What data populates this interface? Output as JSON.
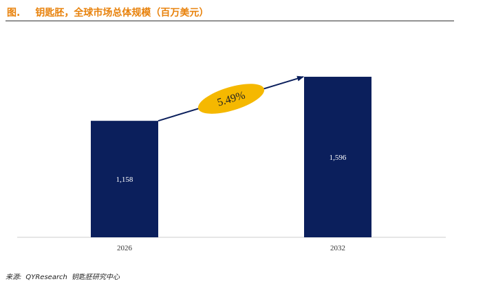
{
  "figure": {
    "label": "图.",
    "title": "钥匙胚，全球市场总体规模（百万美元）"
  },
  "source": {
    "prefix": "来源:",
    "org": "QYResearch",
    "suffix": "钥匙胚研究中心"
  },
  "colors": {
    "title": "#E8820C",
    "bar": "#0B1F5C",
    "arrow": "#0B1F5C",
    "badge": "#F5B800",
    "bar_label": "#ffffff",
    "axis": "#cccccc"
  },
  "chart_data": {
    "type": "bar",
    "title": "钥匙胚，全球市场总体规模（百万美元）",
    "categories": [
      "2026",
      "2032"
    ],
    "values": [
      1158,
      1596
    ],
    "value_labels": [
      "1,158",
      "1,596"
    ],
    "ylim": [
      0,
      1800
    ],
    "growth_label": "5.49%",
    "xlabel": "",
    "ylabel": ""
  }
}
